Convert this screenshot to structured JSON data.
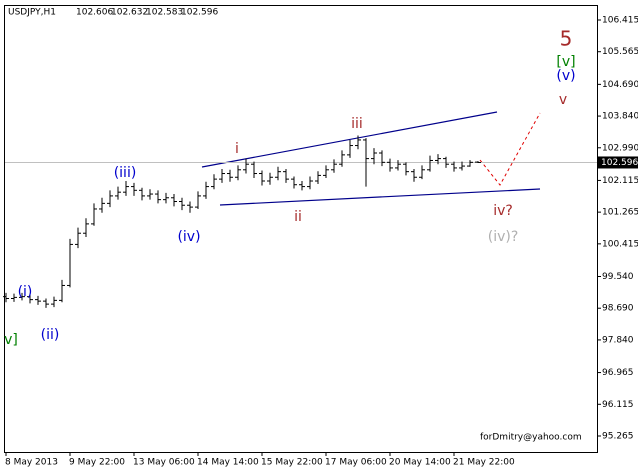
{
  "chart_data": {
    "type": "ohlc",
    "symbol": "USDJPY,H1",
    "categories": [
      "8 May 2013",
      null,
      null,
      null,
      null,
      null,
      null,
      null,
      "9 May 22:00",
      null,
      null,
      null,
      null,
      null,
      null,
      null,
      "13 May 06:00",
      null,
      null,
      null,
      null,
      null,
      null,
      null,
      "14 May 14:00",
      null,
      null,
      null,
      null,
      null,
      null,
      null,
      "15 May 22:00",
      null,
      null,
      null,
      null,
      null,
      null,
      null,
      "17 May 06:00",
      null,
      null,
      null,
      null,
      null,
      null,
      null,
      "20 May 14:00",
      null,
      null,
      null,
      null,
      null,
      null,
      null,
      "21 May 22:00",
      null,
      null,
      null
    ],
    "open": [
      99.0,
      98.95,
      98.98,
      99.0,
      98.92,
      98.88,
      98.8,
      98.9,
      99.3,
      100.4,
      100.7,
      100.95,
      101.35,
      101.5,
      101.7,
      101.8,
      101.95,
      101.85,
      101.7,
      101.75,
      101.6,
      101.65,
      101.55,
      101.45,
      101.4,
      101.7,
      101.95,
      102.15,
      102.3,
      102.2,
      102.4,
      102.55,
      102.3,
      102.1,
      102.2,
      102.35,
      102.15,
      102.0,
      101.95,
      102.1,
      102.25,
      102.4,
      102.55,
      102.8,
      103.05,
      103.2,
      102.7,
      102.85,
      102.6,
      102.45,
      102.55,
      102.35,
      102.2,
      102.4,
      102.65,
      102.7,
      102.55,
      102.45,
      102.5,
      102.606
    ],
    "high": [
      99.1,
      99.08,
      99.1,
      99.08,
      99.02,
      98.95,
      99.0,
      99.45,
      100.55,
      100.85,
      101.1,
      101.5,
      101.65,
      101.85,
      101.95,
      102.1,
      102.05,
      101.92,
      101.88,
      101.85,
      101.78,
      101.75,
      101.65,
      101.55,
      101.82,
      102.08,
      102.28,
      102.42,
      102.4,
      102.52,
      102.7,
      102.62,
      102.38,
      102.32,
      102.48,
      102.42,
      102.22,
      102.1,
      102.22,
      102.36,
      102.52,
      102.68,
      102.92,
      103.2,
      103.32,
      103.25,
      102.98,
      102.92,
      102.7,
      102.66,
      102.6,
      102.42,
      102.52,
      102.78,
      102.82,
      102.75,
      102.62,
      102.62,
      102.66,
      102.632
    ],
    "low": [
      98.85,
      98.86,
      98.9,
      98.82,
      98.78,
      98.7,
      98.72,
      98.85,
      99.25,
      100.3,
      100.6,
      100.9,
      101.25,
      101.4,
      101.6,
      101.7,
      101.7,
      101.58,
      101.6,
      101.5,
      101.5,
      101.42,
      101.32,
      101.25,
      101.35,
      101.62,
      101.88,
      102.05,
      102.08,
      102.12,
      102.3,
      102.18,
      101.98,
      102.0,
      102.12,
      102.05,
      101.9,
      101.85,
      101.88,
      102.02,
      102.18,
      102.32,
      102.48,
      102.72,
      102.95,
      101.95,
      102.55,
      102.5,
      102.35,
      102.38,
      102.25,
      102.08,
      102.15,
      102.35,
      102.55,
      102.45,
      102.35,
      102.38,
      102.48,
      102.583
    ],
    "close": [
      98.95,
      98.98,
      99.0,
      98.92,
      98.88,
      98.8,
      98.9,
      99.3,
      100.4,
      100.7,
      100.95,
      101.35,
      101.5,
      101.7,
      101.8,
      101.95,
      101.85,
      101.7,
      101.75,
      101.6,
      101.65,
      101.55,
      101.45,
      101.4,
      101.7,
      101.95,
      102.15,
      102.3,
      102.2,
      102.4,
      102.55,
      102.3,
      102.1,
      102.2,
      102.35,
      102.15,
      102.0,
      101.95,
      102.1,
      102.25,
      102.4,
      102.55,
      102.8,
      103.05,
      103.2,
      102.7,
      102.85,
      102.6,
      102.45,
      102.55,
      102.35,
      102.2,
      102.4,
      102.65,
      102.7,
      102.55,
      102.45,
      102.5,
      102.6,
      102.596
    ],
    "color": "#000000",
    "ylim": [
      94.836,
      106.817
    ],
    "yticks": [
      {
        "value": 106.415,
        "label": "106.415"
      },
      {
        "value": 105.565,
        "label": "105.565"
      },
      {
        "value": 104.69,
        "label": "104.690"
      },
      {
        "value": 103.84,
        "label": "103.840"
      },
      {
        "value": 102.99,
        "label": "102.990"
      },
      102.115,
      101.265,
      100.415,
      {
        "value": 99.54,
        "label": "99.540"
      },
      {
        "value": 98.69,
        "label": "98.690"
      },
      {
        "value": 97.84,
        "label": "97.840"
      },
      96.965,
      96.115,
      95.265
    ],
    "annotations": [
      {
        "text": "5",
        "color": "#a52a2a"
      },
      {
        "text": "[v]",
        "color": "#008000"
      },
      {
        "text": "(v)",
        "color": "#0000cd"
      },
      {
        "text": "v",
        "color": "#a52a2a"
      },
      {
        "text": "iii",
        "color": "#a52a2a"
      },
      {
        "text": "i",
        "color": "#a52a2a"
      },
      {
        "text": "ii",
        "color": "#a52a2a"
      },
      {
        "text": "iv?",
        "color": "#a52a2a"
      },
      {
        "text": "(iv)?",
        "color": "#b0b0b0"
      },
      {
        "text": "(iii)",
        "color": "#0000cd"
      },
      {
        "text": "(iv)",
        "color": "#0000cd"
      },
      {
        "text": "(i)",
        "color": "#0000cd"
      },
      {
        "text": "(ii)",
        "color": "#0000cd"
      },
      {
        "text": "v]",
        "color": "#008000"
      }
    ],
    "watermark": "forDmitry@yahoo.com"
  }
}
